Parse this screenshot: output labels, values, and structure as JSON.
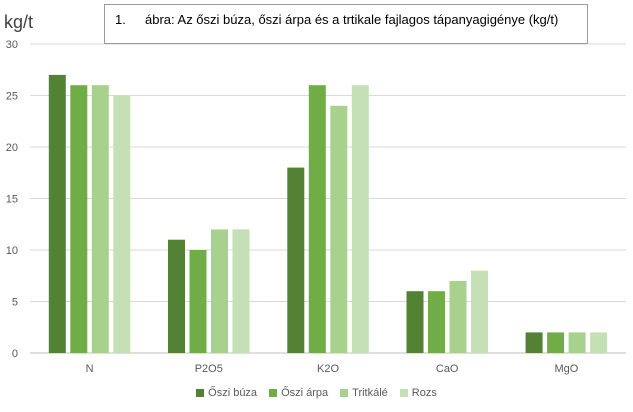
{
  "caption": {
    "number": "1.",
    "text": "ábra: Az őszi búza, őszi árpa és a trtikale fajlagos tápanyagigénye (kg/t)"
  },
  "unit": "kg/t",
  "colors": [
    "#548235",
    "#70AD47",
    "#A9D18E",
    "#C5E0B4"
  ],
  "chart_data": {
    "type": "bar",
    "categories": [
      "N",
      "P2O5",
      "K2O",
      "CaO",
      "MgO"
    ],
    "series": [
      {
        "name": "Őszi búza",
        "values": [
          27,
          11,
          18,
          6,
          2
        ]
      },
      {
        "name": "Őszi árpa",
        "values": [
          26,
          10,
          26,
          6,
          2
        ]
      },
      {
        "name": "Tritkálé",
        "values": [
          26,
          12,
          24,
          7,
          2
        ]
      },
      {
        "name": "Rozs",
        "values": [
          25,
          12,
          26,
          8,
          2
        ]
      }
    ],
    "ylim": [
      0,
      30
    ],
    "yticks": [
      0,
      5,
      10,
      15,
      20,
      25,
      30
    ],
    "grid": true,
    "legend": "bottom"
  }
}
